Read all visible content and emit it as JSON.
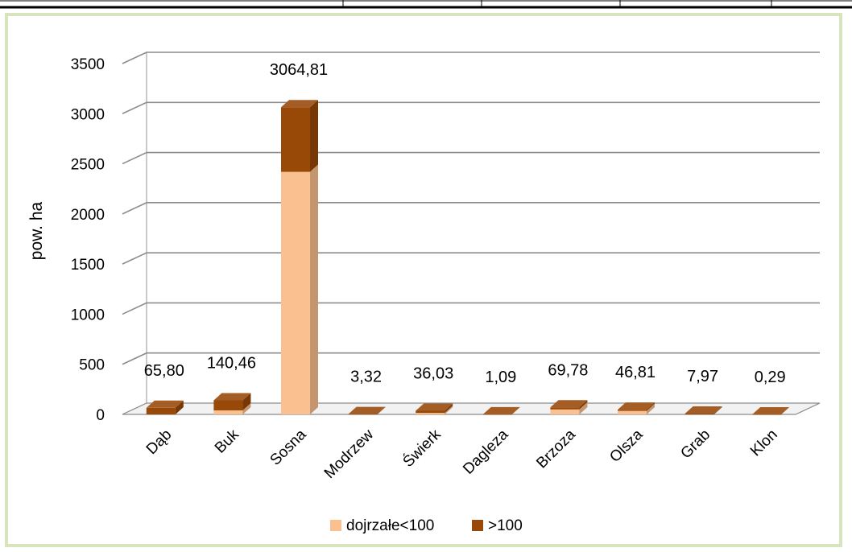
{
  "chart_data": {
    "type": "bar",
    "stacked": true,
    "three_d": true,
    "categories": [
      "Dąb",
      "Buk",
      "Sosna",
      "Modrzew",
      "Świerk",
      "Dagleza",
      "Brzoza",
      "Olsza",
      "Grab",
      "Klon"
    ],
    "series": [
      {
        "name": "dojrzałe<100",
        "color": "#fac090",
        "values": [
          0,
          40,
          2420,
          0,
          15,
          0,
          50,
          35,
          0,
          0
        ]
      },
      {
        "name": ">100",
        "color": "#984807",
        "values": [
          65.8,
          100.46,
          644.81,
          3.32,
          21.03,
          1.09,
          19.78,
          11.81,
          7.97,
          0.29
        ]
      }
    ],
    "totals": [
      65.8,
      140.46,
      3064.81,
      3.32,
      36.03,
      1.09,
      69.78,
      46.81,
      7.97,
      0.29
    ],
    "data_labels": [
      "65,80",
      "140,46",
      "3064,81",
      "3,32",
      "36,03",
      "1,09",
      "69,78",
      "46,81",
      "7,97",
      "0,29"
    ],
    "ylabel": "pow. ha",
    "xlabel": "",
    "title": "",
    "ylim": [
      0,
      3500
    ],
    "yticks": [
      "0",
      "500",
      "1000",
      "1500",
      "2000",
      "2500",
      "3000",
      "3500"
    ],
    "grid": true,
    "legend_position": "bottom"
  }
}
